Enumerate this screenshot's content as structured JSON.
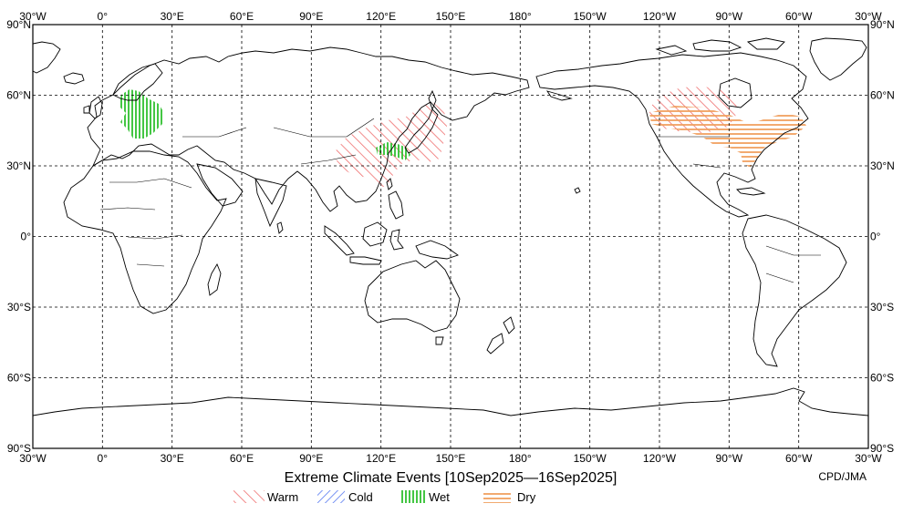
{
  "title": "Extreme Climate Events [10Sep2025—16Sep2025]",
  "credit": "CPD/JMA",
  "lon_labels": [
    "30°W",
    "0°",
    "30°E",
    "60°E",
    "90°E",
    "120°E",
    "150°E",
    "180°",
    "150°W",
    "120°W",
    "90°W",
    "60°W",
    "30°W"
  ],
  "lat_labels": [
    "90°N",
    "60°N",
    "30°N",
    "0°",
    "30°S",
    "60°S",
    "90°S"
  ],
  "legend": [
    {
      "key": "warm",
      "label": "Warm",
      "color": "#ef7b7b"
    },
    {
      "key": "cold",
      "label": "Cold",
      "color": "#4a6ff0"
    },
    {
      "key": "wet",
      "label": "Wet",
      "color": "#3ecf3e"
    },
    {
      "key": "dry",
      "label": "Dry",
      "color": "#f0a060"
    }
  ]
}
